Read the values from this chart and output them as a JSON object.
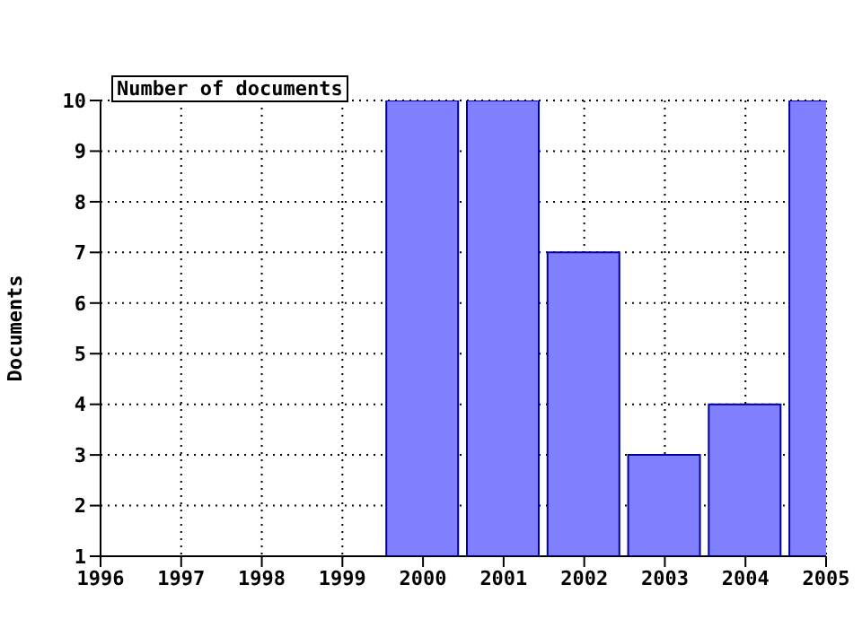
{
  "chart_data": {
    "type": "bar",
    "ylabel": "Documents",
    "x": [
      2000,
      2001,
      2002,
      2003,
      2004,
      2005
    ],
    "series": [
      {
        "name": "Number of documents",
        "color": "#8080ff",
        "values": [
          10,
          10,
          7,
          3,
          4,
          10
        ]
      }
    ],
    "xlim": [
      1996,
      2005
    ],
    "xticks": [
      1996,
      1997,
      1998,
      1999,
      2000,
      2001,
      2002,
      2003,
      2004,
      2005
    ],
    "ylim": [
      1,
      10
    ],
    "yticks": [
      1,
      2,
      3,
      4,
      5,
      6,
      7,
      8,
      9,
      10
    ],
    "grid": true,
    "legend": "top left"
  }
}
